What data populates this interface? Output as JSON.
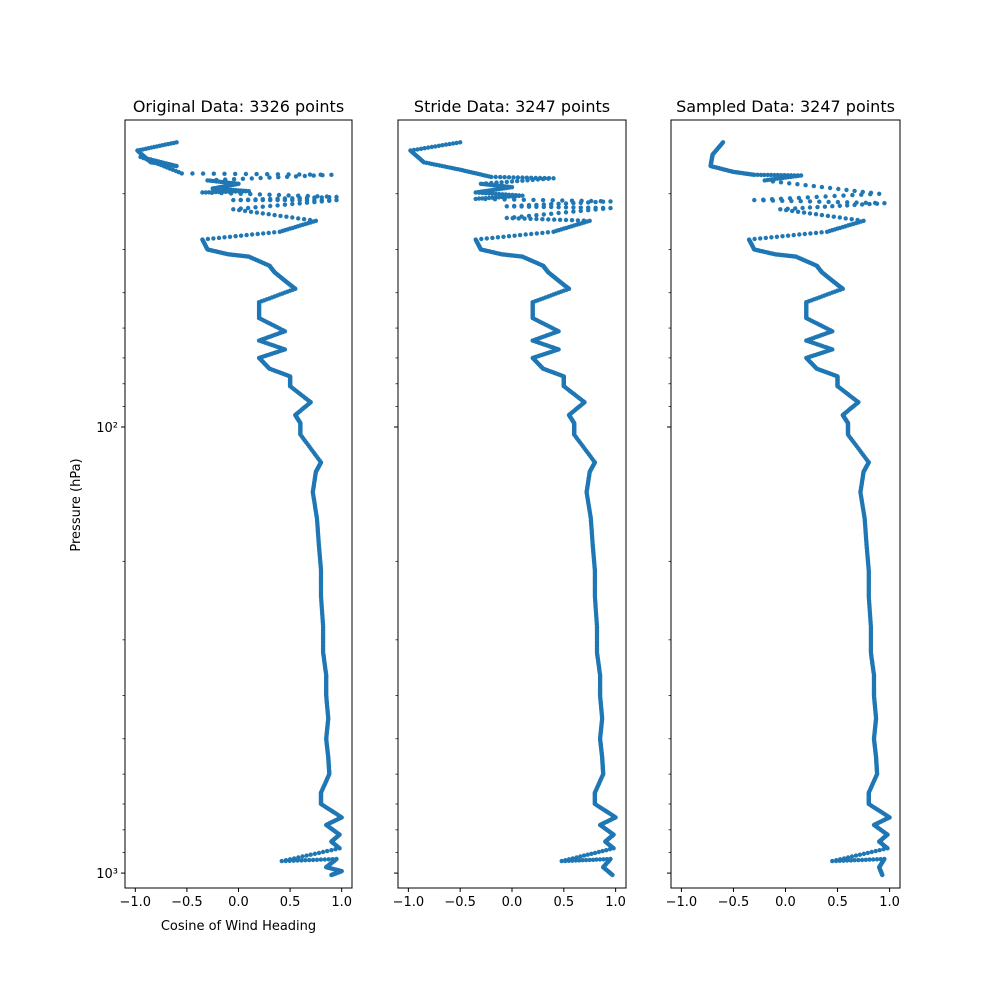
{
  "figure": {
    "ylabel": "Pressure (hPa)",
    "xlabel": "Cosine of Wind Heading",
    "marker_color": "#1f77b4"
  },
  "chart_data": [
    {
      "type": "scatter",
      "title": "Original Data: 3326 points",
      "xlabel": "Cosine of Wind Heading",
      "ylabel": "Pressure (hPa)",
      "xlim": [
        -1.1,
        1.1
      ],
      "ylim": [
        1080,
        20.5
      ],
      "yscale": "log",
      "xticks": [
        -1.0,
        -0.5,
        0.0,
        0.5,
        1.0
      ],
      "xtick_labels": [
        "−1.0",
        "−0.5",
        "0.0",
        "0.5",
        "1.0"
      ],
      "yticks_major": [
        100,
        1000
      ],
      "ytick_labels": [
        "10²",
        "10³"
      ],
      "grid": false,
      "series": [
        {
          "x": [
            -0.6,
            -0.98,
            -0.85,
            -0.6,
            -0.95,
            -0.55,
            0.9,
            -0.3,
            0.0,
            -0.25,
            0.1,
            -0.35,
            0.95,
            -0.05,
            0.95,
            -0.05,
            0.75,
            0.4,
            -0.35,
            -0.3,
            -0.1,
            0.1,
            0.3,
            0.35,
            0.45,
            0.55,
            0.2,
            0.2,
            0.45,
            0.2,
            0.45,
            0.2,
            0.3,
            0.5,
            0.5,
            0.7,
            0.55,
            0.6,
            0.6,
            0.8,
            0.75,
            0.72,
            0.76,
            0.78,
            0.8,
            0.8,
            0.82,
            0.82,
            0.85,
            0.85,
            0.87,
            0.85,
            0.87,
            0.88,
            0.8,
            0.8,
            1.0,
            0.85,
            0.98,
            0.9,
            0.98,
            0.42,
            0.95,
            0.85,
            1.0,
            0.9
          ],
          "y": [
            23,
            24,
            25.5,
            26,
            24.8,
            27,
            27.2,
            28,
            28.5,
            29.2,
            29.6,
            29.8,
            30.5,
            31,
            31,
            32.5,
            34.5,
            36.5,
            38,
            40,
            41,
            41.5,
            43.5,
            45,
            47,
            49,
            52.5,
            57,
            61,
            64,
            67,
            70,
            74,
            77,
            81,
            88,
            94,
            98,
            104,
            120,
            126,
            140,
            160,
            185,
            210,
            240,
            280,
            320,
            360,
            400,
            450,
            500,
            550,
            600,
            660,
            700,
            750,
            780,
            820,
            850,
            880,
            940,
            930,
            970,
            990,
            1010
          ]
        }
      ]
    },
    {
      "type": "scatter",
      "title": "Stride Data: 3247 points",
      "xlabel": "",
      "ylabel": "",
      "xlim": [
        -1.1,
        1.1
      ],
      "ylim": [
        1080,
        20.5
      ],
      "yscale": "log",
      "xticks": [
        -1.0,
        -0.5,
        0.0,
        0.5,
        1.0
      ],
      "xtick_labels": [
        "−1.0",
        "−0.5",
        "0.0",
        "0.5",
        "1.0"
      ],
      "yticks_major": [
        100,
        1000
      ],
      "ytick_labels": [],
      "grid": false,
      "series": [
        {
          "x": [
            -0.5,
            -0.98,
            -0.85,
            -0.5,
            -0.2,
            0.4,
            -0.3,
            0.0,
            -0.35,
            0.1,
            -0.35,
            0.95,
            -0.05,
            0.95,
            -0.05,
            0.75,
            0.4,
            -0.35,
            -0.3,
            -0.1,
            0.1,
            0.3,
            0.35,
            0.45,
            0.55,
            0.2,
            0.2,
            0.45,
            0.2,
            0.45,
            0.2,
            0.3,
            0.5,
            0.5,
            0.7,
            0.55,
            0.6,
            0.6,
            0.8,
            0.75,
            0.72,
            0.76,
            0.78,
            0.8,
            0.8,
            0.82,
            0.82,
            0.85,
            0.85,
            0.87,
            0.85,
            0.87,
            0.88,
            0.8,
            0.8,
            1.0,
            0.85,
            0.98,
            0.9,
            0.98,
            0.48,
            0.95,
            0.88,
            0.97
          ],
          "y": [
            23,
            24,
            25.5,
            26.5,
            27.5,
            27.7,
            28.5,
            29,
            29.8,
            30.3,
            30.8,
            31.2,
            32,
            32.3,
            34,
            34.5,
            36.5,
            38,
            40,
            41,
            41.5,
            43.5,
            45,
            47,
            49,
            52.5,
            57,
            61,
            64,
            67,
            70,
            74,
            77,
            81,
            88,
            94,
            98,
            104,
            120,
            126,
            140,
            160,
            185,
            210,
            240,
            280,
            320,
            360,
            400,
            450,
            500,
            550,
            600,
            660,
            700,
            750,
            780,
            820,
            850,
            880,
            940,
            930,
            970,
            1010
          ]
        }
      ]
    },
    {
      "type": "scatter",
      "title": "Sampled Data: 3247 points",
      "xlabel": "",
      "ylabel": "",
      "xlim": [
        -1.1,
        1.1
      ],
      "ylim": [
        1080,
        20.5
      ],
      "yscale": "log",
      "xticks": [
        -1.0,
        -0.5,
        0.0,
        0.5,
        1.0
      ],
      "xtick_labels": [
        "−1.0",
        "−0.5",
        "0.0",
        "0.5",
        "1.0"
      ],
      "yticks_major": [
        100,
        1000
      ],
      "ytick_labels": [],
      "grid": false,
      "series": [
        {
          "x": [
            -0.6,
            -0.7,
            -0.72,
            -0.5,
            -0.3,
            0.15,
            -0.2,
            0.9,
            -0.3,
            0.95,
            -0.05,
            0.75,
            0.4,
            -0.35,
            -0.3,
            -0.1,
            0.1,
            0.3,
            0.35,
            0.45,
            0.55,
            0.2,
            0.2,
            0.45,
            0.2,
            0.45,
            0.2,
            0.3,
            0.5,
            0.5,
            0.7,
            0.55,
            0.6,
            0.6,
            0.8,
            0.75,
            0.72,
            0.76,
            0.78,
            0.8,
            0.8,
            0.82,
            0.82,
            0.85,
            0.85,
            0.87,
            0.85,
            0.87,
            0.88,
            0.8,
            0.8,
            1.0,
            0.85,
            0.98,
            0.9,
            0.98,
            0.45,
            0.95,
            0.9,
            0.93
          ],
          "y": [
            23,
            24.5,
            26,
            26.8,
            27.2,
            27.3,
            28,
            30,
            31,
            31.5,
            32.5,
            34.5,
            36.5,
            38,
            40,
            41,
            41.5,
            43.5,
            45,
            47,
            49,
            52.5,
            57,
            61,
            64,
            67,
            70,
            74,
            77,
            81,
            88,
            94,
            98,
            104,
            120,
            126,
            140,
            160,
            185,
            210,
            240,
            280,
            320,
            360,
            400,
            450,
            500,
            550,
            600,
            660,
            700,
            750,
            780,
            820,
            850,
            880,
            940,
            930,
            970,
            1010
          ]
        }
      ]
    }
  ]
}
